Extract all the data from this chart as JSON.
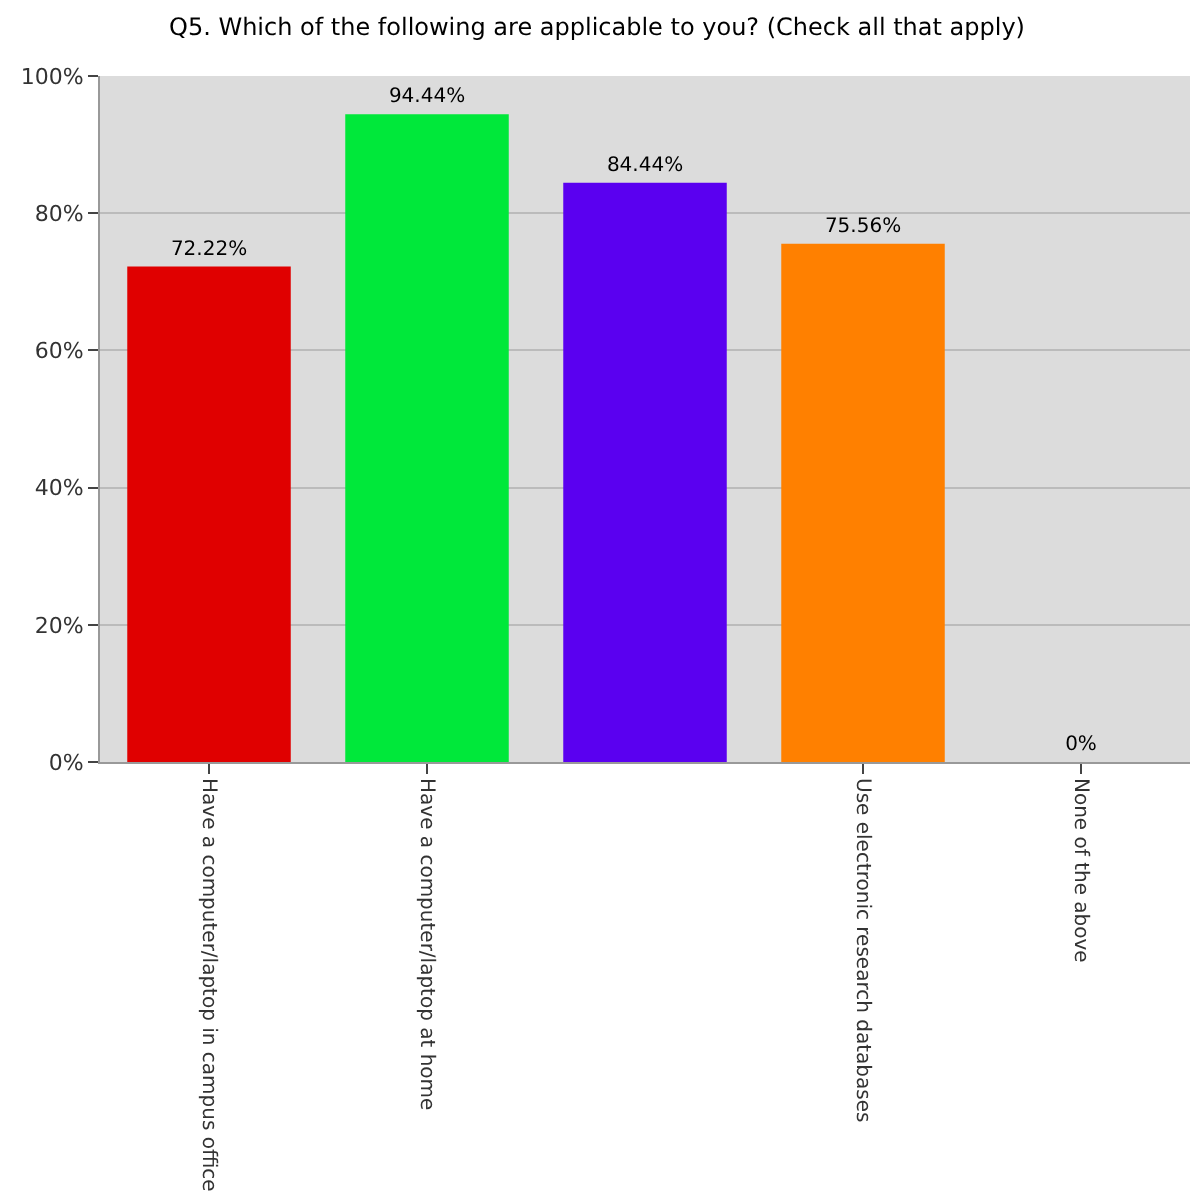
{
  "chart_data": {
    "type": "bar",
    "title": "Q5. Which of the following are applicable to you? (Check all that apply)",
    "categories": [
      "Have a computer/laptop in campus office",
      "Have a computer/laptop at home",
      null,
      "Use electronic research databases",
      "None of the above"
    ],
    "values": [
      72.22,
      94.44,
      84.44,
      75.56,
      0
    ],
    "colors": [
      "#e00000",
      "#00e83a",
      "#5a00f0",
      "#ff8000",
      "#888888"
    ],
    "value_labels": [
      "72.22%",
      "94.44%",
      "84.44%",
      "75.56%",
      "0%"
    ],
    "ylim": [
      0,
      100
    ],
    "yticks": [
      {
        "value": 0,
        "label": "0%"
      },
      {
        "value": 20,
        "label": "20%"
      },
      {
        "value": 40,
        "label": "40%"
      },
      {
        "value": 60,
        "label": "60%"
      },
      {
        "value": 80,
        "label": "80%"
      },
      {
        "value": 100,
        "label": "100%"
      }
    ],
    "grid": "y"
  }
}
